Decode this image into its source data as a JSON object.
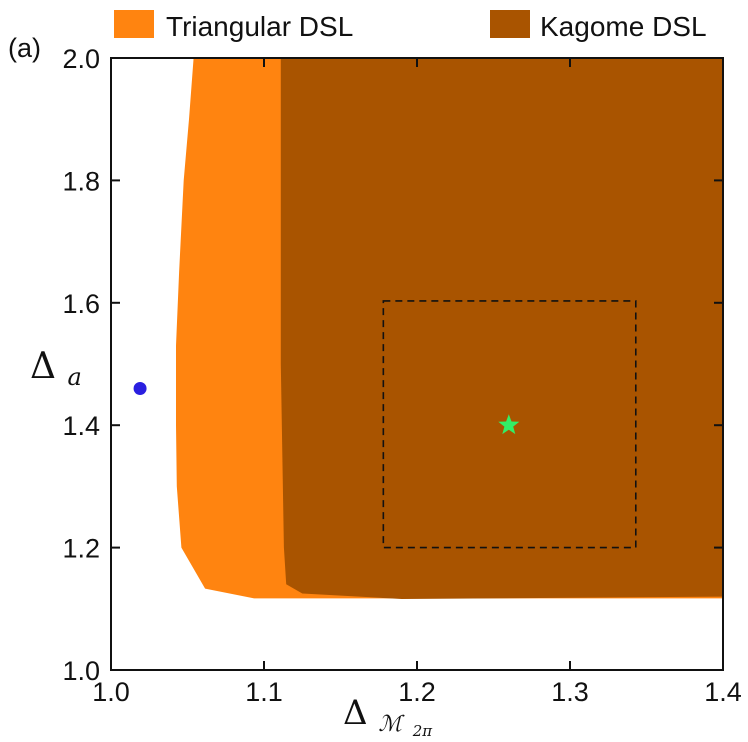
{
  "chart_data": {
    "type": "area",
    "panel_label": "(a)",
    "xlabel": "Δ",
    "xlabel_sub": "ℳ",
    "xlabel_subsub": "2π",
    "ylabel": "Δ",
    "ylabel_sub": "a",
    "xlim": [
      1.0,
      1.4
    ],
    "ylim": [
      1.0,
      2.0
    ],
    "x_ticks": [
      1.0,
      1.1,
      1.2,
      1.3,
      1.4
    ],
    "x_tick_labels": [
      "1.0",
      "1.1",
      "1.2",
      "1.3",
      "1.4"
    ],
    "y_ticks": [
      1.0,
      1.2,
      1.4,
      1.6,
      1.8,
      2.0
    ],
    "y_tick_labels": [
      "1.0",
      "1.2",
      "1.4",
      "1.6",
      "1.8",
      "2.0"
    ],
    "legend": {
      "placement": "top",
      "entries": [
        {
          "label": "Triangular DSL",
          "color": "#ff8410"
        },
        {
          "label": "Kagome DSL",
          "color": "#a95400"
        }
      ]
    },
    "series": [
      {
        "name": "Triangular DSL",
        "color": "#ff8410",
        "polygon": [
          [
            1.054,
            2.0
          ],
          [
            1.4,
            2.0
          ],
          [
            1.4,
            1.117
          ],
          [
            1.0935,
            1.117
          ],
          [
            1.0615,
            1.133
          ],
          [
            1.046,
            1.2
          ],
          [
            1.043,
            1.3
          ],
          [
            1.0425,
            1.4
          ],
          [
            1.0425,
            1.53
          ],
          [
            1.0445,
            1.65
          ],
          [
            1.0475,
            1.8
          ],
          [
            1.051,
            1.9
          ],
          [
            1.054,
            2.0
          ]
        ]
      },
      {
        "name": "Kagome DSL",
        "color": "#a95400",
        "polygon": [
          [
            1.111,
            2.0
          ],
          [
            1.4,
            2.0
          ],
          [
            1.4,
            1.12
          ],
          [
            1.19,
            1.116
          ],
          [
            1.125,
            1.125
          ],
          [
            1.1145,
            1.14
          ],
          [
            1.113,
            1.2
          ],
          [
            1.111,
            1.5
          ],
          [
            1.111,
            2.0
          ]
        ]
      }
    ],
    "markers": [
      {
        "name": "blue-dot",
        "shape": "circle",
        "x": 1.019,
        "y": 1.46,
        "color": "#2a1fe0"
      },
      {
        "name": "green-star",
        "shape": "star",
        "x": 1.26,
        "y": 1.4,
        "color": "#33ee66"
      }
    ],
    "dashed_box": {
      "x0": 1.178,
      "x1": 1.343,
      "y0": 1.2,
      "y1": 1.603,
      "color": "#111111"
    }
  }
}
